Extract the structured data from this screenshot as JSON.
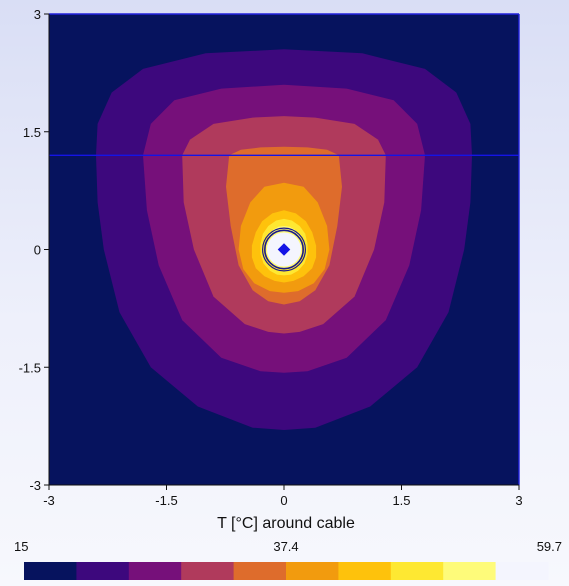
{
  "chart_data": {
    "type": "heatmap",
    "title": "",
    "xlabel": "T [°C] around cable",
    "ylabel": "",
    "xlim": [
      -3,
      3
    ],
    "ylim": [
      -3,
      3
    ],
    "x_ticks": [
      "-3",
      "-1.5",
      "0",
      "1.5",
      "3"
    ],
    "y_ticks": [
      "3",
      "1.5",
      "0",
      "-1.5",
      "-3"
    ],
    "x_tick_values": [
      -3,
      -1.5,
      0,
      1.5,
      3
    ],
    "y_tick_values": [
      3,
      1.5,
      0,
      -1.5,
      -3
    ],
    "horizontal_line_y": 1.2,
    "cable_center": [
      0,
      0
    ],
    "cable_outer_radius": 0.35,
    "cable_core_radius": 0.08,
    "scale_min": 15,
    "scale_mid": 37.4,
    "scale_max": 59.7,
    "scale_labels": [
      "15",
      "37.4",
      "59.7"
    ],
    "levels": [
      {
        "color": "#06135e"
      },
      {
        "color": "#3d087d"
      },
      {
        "color": "#76107a"
      },
      {
        "color": "#b03a5c"
      },
      {
        "color": "#de6c2c"
      },
      {
        "color": "#f29b0e"
      },
      {
        "color": "#fec20c"
      },
      {
        "color": "#fee832"
      },
      {
        "color": "#fefb7a"
      },
      {
        "color": "#f4f5fe"
      }
    ],
    "contours": [
      {
        "level": 1,
        "points": [
          [
            -2.4,
            1.2
          ],
          [
            -2.38,
            1.6
          ],
          [
            -2.2,
            2.0
          ],
          [
            -1.8,
            2.3
          ],
          [
            -1.0,
            2.5
          ],
          [
            0,
            2.55
          ],
          [
            1.0,
            2.5
          ],
          [
            1.8,
            2.3
          ],
          [
            2.2,
            2.0
          ],
          [
            2.38,
            1.6
          ],
          [
            2.4,
            1.2
          ],
          [
            2.38,
            0.6
          ],
          [
            2.3,
            0
          ],
          [
            2.1,
            -0.8
          ],
          [
            1.7,
            -1.5
          ],
          [
            1.1,
            -2.0
          ],
          [
            0.4,
            -2.27
          ],
          [
            0,
            -2.3
          ],
          [
            -0.4,
            -2.27
          ],
          [
            -1.1,
            -2.0
          ],
          [
            -1.7,
            -1.5
          ],
          [
            -2.1,
            -0.8
          ],
          [
            -2.3,
            0
          ],
          [
            -2.38,
            0.6
          ]
        ]
      },
      {
        "level": 2,
        "points": [
          [
            -1.8,
            1.2
          ],
          [
            -1.7,
            1.6
          ],
          [
            -1.4,
            1.9
          ],
          [
            -0.8,
            2.05
          ],
          [
            0,
            2.1
          ],
          [
            0.8,
            2.05
          ],
          [
            1.4,
            1.9
          ],
          [
            1.7,
            1.6
          ],
          [
            1.8,
            1.2
          ],
          [
            1.75,
            0.5
          ],
          [
            1.6,
            -0.2
          ],
          [
            1.3,
            -0.9
          ],
          [
            0.8,
            -1.38
          ],
          [
            0.3,
            -1.55
          ],
          [
            0,
            -1.57
          ],
          [
            -0.3,
            -1.55
          ],
          [
            -0.8,
            -1.38
          ],
          [
            -1.3,
            -0.9
          ],
          [
            -1.6,
            -0.2
          ],
          [
            -1.75,
            0.5
          ]
        ]
      },
      {
        "level": 3,
        "points": [
          [
            -1.3,
            1.2
          ],
          [
            -1.2,
            1.4
          ],
          [
            -0.9,
            1.6
          ],
          [
            -0.4,
            1.68
          ],
          [
            0,
            1.7
          ],
          [
            0.4,
            1.68
          ],
          [
            0.9,
            1.6
          ],
          [
            1.2,
            1.4
          ],
          [
            1.3,
            1.2
          ],
          [
            1.28,
            0.6
          ],
          [
            1.15,
            0
          ],
          [
            0.9,
            -0.6
          ],
          [
            0.5,
            -0.95
          ],
          [
            0.2,
            -1.05
          ],
          [
            0,
            -1.07
          ],
          [
            -0.2,
            -1.05
          ],
          [
            -0.5,
            -0.95
          ],
          [
            -0.9,
            -0.6
          ],
          [
            -1.15,
            0
          ],
          [
            -1.28,
            0.6
          ]
        ]
      },
      {
        "level": 4,
        "points": [
          [
            -0.7,
            1.2
          ],
          [
            -0.55,
            1.27
          ],
          [
            -0.3,
            1.3
          ],
          [
            0,
            1.31
          ],
          [
            0.3,
            1.3
          ],
          [
            0.55,
            1.27
          ],
          [
            0.7,
            1.2
          ],
          [
            0.74,
            0.8
          ],
          [
            0.68,
            0.3
          ],
          [
            0.58,
            -0.2
          ],
          [
            0.4,
            -0.52
          ],
          [
            0.2,
            -0.66
          ],
          [
            0,
            -0.7
          ],
          [
            -0.2,
            -0.66
          ],
          [
            -0.4,
            -0.52
          ],
          [
            -0.58,
            -0.2
          ],
          [
            -0.68,
            0.3
          ],
          [
            -0.74,
            0.8
          ]
        ]
      },
      {
        "level": 5,
        "points": [
          [
            -0.25,
            0.8
          ],
          [
            0,
            0.85
          ],
          [
            0.25,
            0.8
          ],
          [
            0.43,
            0.6
          ],
          [
            0.55,
            0.3
          ],
          [
            0.58,
            0
          ],
          [
            0.52,
            -0.25
          ],
          [
            0.38,
            -0.43
          ],
          [
            0.18,
            -0.53
          ],
          [
            0,
            -0.55
          ],
          [
            -0.18,
            -0.53
          ],
          [
            -0.38,
            -0.43
          ],
          [
            -0.52,
            -0.25
          ],
          [
            -0.58,
            0
          ],
          [
            -0.55,
            0.3
          ],
          [
            -0.43,
            0.6
          ]
        ]
      },
      {
        "level": 6,
        "points": [
          [
            -0.15,
            0.46
          ],
          [
            0,
            0.5
          ],
          [
            0.15,
            0.46
          ],
          [
            0.28,
            0.36
          ],
          [
            0.36,
            0.22
          ],
          [
            0.41,
            0.05
          ],
          [
            0.41,
            -0.1
          ],
          [
            0.36,
            -0.24
          ],
          [
            0.25,
            -0.34
          ],
          [
            0.12,
            -0.4
          ],
          [
            0,
            -0.42
          ],
          [
            -0.12,
            -0.4
          ],
          [
            -0.25,
            -0.34
          ],
          [
            -0.36,
            -0.24
          ],
          [
            -0.41,
            -0.1
          ],
          [
            -0.41,
            0.05
          ],
          [
            -0.36,
            0.22
          ],
          [
            -0.28,
            0.36
          ]
        ]
      },
      {
        "level": 7,
        "points": [
          [
            -0.1,
            0.37
          ],
          [
            0,
            0.39
          ],
          [
            0.1,
            0.37
          ],
          [
            0.2,
            0.3
          ],
          [
            0.27,
            0.2
          ],
          [
            0.3,
            0.07
          ],
          [
            0.3,
            -0.06
          ],
          [
            0.26,
            -0.18
          ],
          [
            0.18,
            -0.27
          ],
          [
            0.09,
            -0.32
          ],
          [
            0,
            -0.33
          ],
          [
            -0.09,
            -0.32
          ],
          [
            -0.18,
            -0.27
          ],
          [
            -0.26,
            -0.18
          ],
          [
            -0.3,
            -0.06
          ],
          [
            -0.3,
            0.07
          ],
          [
            -0.27,
            0.2
          ],
          [
            -0.2,
            0.3
          ]
        ]
      },
      {
        "level": 8,
        "points": [
          [
            -0.07,
            0.29
          ],
          [
            0,
            0.3
          ],
          [
            0.07,
            0.29
          ],
          [
            0.14,
            0.25
          ],
          [
            0.2,
            0.17
          ],
          [
            0.23,
            0.07
          ],
          [
            0.23,
            -0.04
          ],
          [
            0.2,
            -0.13
          ],
          [
            0.14,
            -0.2
          ],
          [
            0.07,
            -0.24
          ],
          [
            0,
            -0.25
          ],
          [
            -0.07,
            -0.24
          ],
          [
            -0.14,
            -0.2
          ],
          [
            -0.2,
            -0.13
          ],
          [
            -0.23,
            -0.04
          ],
          [
            -0.23,
            0.07
          ],
          [
            -0.2,
            0.17
          ],
          [
            -0.14,
            0.25
          ]
        ]
      }
    ]
  }
}
